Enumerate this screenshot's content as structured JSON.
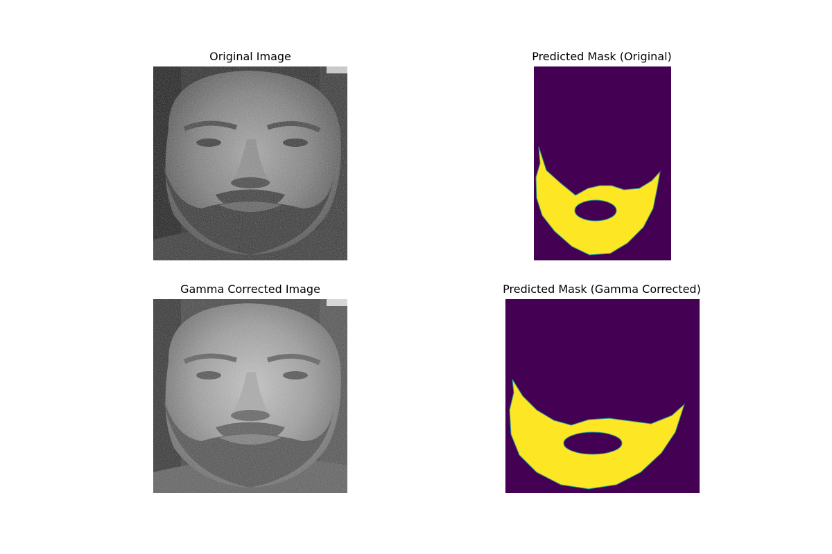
{
  "panels": [
    {
      "title": "Original Image",
      "kind": "grayscale-photo",
      "gamma_corrected": false
    },
    {
      "title": "Predicted Mask (Original)",
      "kind": "segmentation-mask"
    },
    {
      "title": "Gamma Corrected Image",
      "kind": "grayscale-photo",
      "gamma_corrected": true
    },
    {
      "title": "Predicted Mask (Gamma Corrected)",
      "kind": "segmentation-mask"
    }
  ],
  "colors": {
    "mask_background": "#440154",
    "mask_foreground": "#fde725",
    "mask_edge": "#2a9d8f"
  }
}
